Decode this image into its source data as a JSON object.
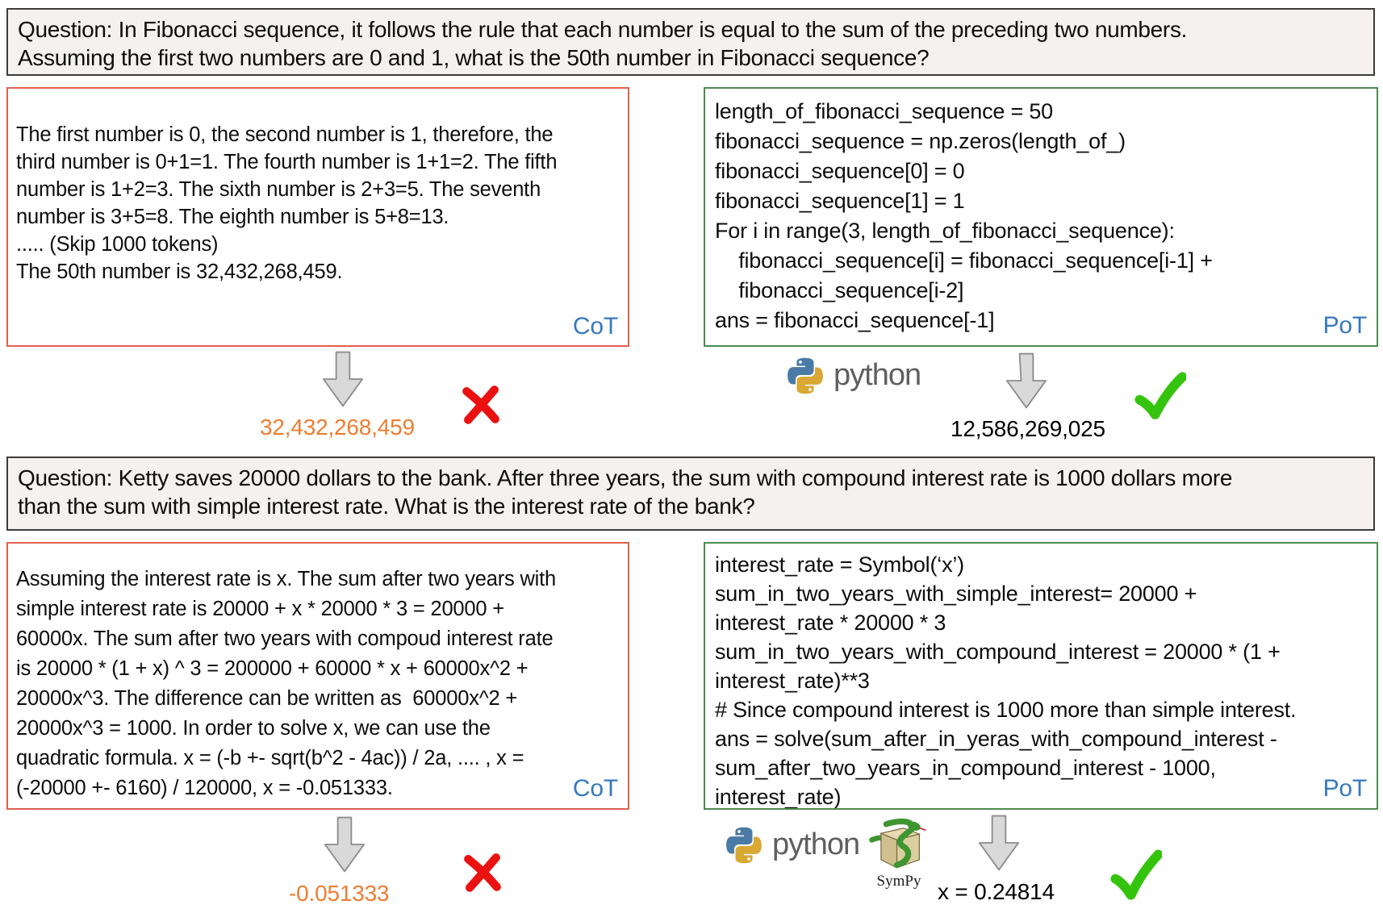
{
  "colors": {
    "cot_border": "#e0604e",
    "pot_border": "#4d8b4f",
    "method_label_blue": "#3779be",
    "wrong_answer_orange": "#ed7d31",
    "cross_red": "#ea1210",
    "check_green": "#35c40e"
  },
  "question1": {
    "lines": [
      "Question: In Fibonacci sequence, it follows the rule that each number is equal to the sum of the preceding two numbers.",
      "Assuming the first two numbers are 0 and 1, what is the 50th number in Fibonacci sequence?"
    ]
  },
  "cot1": {
    "label": "CoT",
    "lines": [
      "The first number is 0, the second number is 1, therefore, the",
      "third number is 0+1=1. The fourth number is 1+1=2. The fifth",
      "number is 1+2=3. The sixth number is 2+3=5. The seventh",
      "number is 3+5=8. The eighth number is 5+8=13.",
      "..... (Skip 1000 tokens)",
      "The 50th number is 32,432,268,459."
    ]
  },
  "pot1": {
    "label": "PoT",
    "lines": [
      "length_of_fibonacci_sequence = 50",
      "fibonacci_sequence = np.zeros(length_of_)",
      "fibonacci_sequence[0] = 0",
      "fibonacci_sequence[1] = 1",
      "For i in range(3, length_of_fibonacci_sequence):",
      "    fibonacci_sequence[i] = fibonacci_sequence[i-1] +",
      "    fibonacci_sequence[i-2]",
      "ans = fibonacci_sequence[-1]"
    ]
  },
  "flow1": {
    "cot_answer": "32,432,268,459",
    "pot_answer": "12,586,269,025",
    "python_label": "python"
  },
  "question2": {
    "lines": [
      "Question: Ketty saves 20000 dollars to the bank. After three years, the sum with compound interest rate is 1000 dollars more",
      "than the sum with simple interest rate. What is the interest rate of the bank?"
    ]
  },
  "cot2": {
    "label": "CoT",
    "lines": [
      "Assuming the interest rate is x. The sum after two years with",
      "simple interest rate is 20000 + x * 20000 * 3 = 20000 +",
      "60000x. The sum after two years with compoud interest rate",
      "is 20000 * (1 + x) ^ 3 = 200000 + 60000 * x + 60000x^2 +",
      "20000x^3. The difference can be written as  60000x^2 +",
      "20000x^3 = 1000. In order to solve x, we can use the",
      "quadratic formula. x = (-b +- sqrt(b^2 - 4ac)) / 2a, .... , x =",
      "(-20000 +- 6160) / 120000, x = -0.051333."
    ]
  },
  "pot2": {
    "label": "PoT",
    "lines": [
      "interest_rate = Symbol(‘x’)",
      "sum_in_two_years_with_simple_interest= 20000 +",
      "interest_rate * 20000 * 3",
      "sum_in_two_years_with_compound_interest = 20000 * (1 +",
      "interest_rate)**3",
      "# Since compound interest is 1000 more than simple interest.",
      "ans = solve(sum_after_in_yeras_with_compound_interest -",
      "sum_after_two_years_in_compound_interest - 1000,",
      "interest_rate)"
    ]
  },
  "flow2": {
    "cot_answer": "-0.051333",
    "pot_answer": "x = 0.24814",
    "python_label": "python",
    "sympy_label": "SymPy"
  }
}
